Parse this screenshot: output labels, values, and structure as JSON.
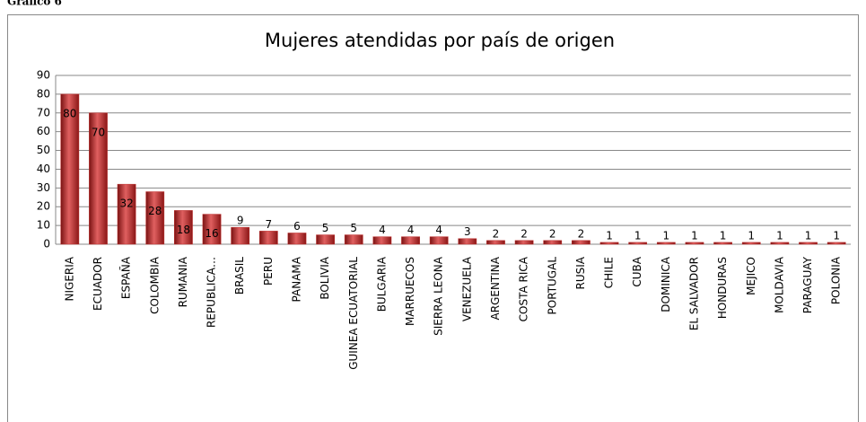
{
  "caption": "Gráfico 6",
  "chart_data": {
    "type": "bar",
    "title": "Mujeres atendidas por país de origen",
    "categories": [
      "NIGERIA",
      "ECUADOR",
      "ESPAÑA",
      "COLOMBIA",
      "RUMANIA",
      "REPUBLICA…",
      "BRASIL",
      "PERU",
      "PANAMA",
      "BOLIVIA",
      "GUINEA ECUATORIAL",
      "BULGARIA",
      "MARRUECOS",
      "SIERRA LEONA",
      "VENEZUELA",
      "ARGENTINA",
      "COSTA RICA",
      "PORTUGAL",
      "RUSIA",
      "CHILE",
      "CUBA",
      "DOMINICA",
      "EL SALVADOR",
      "HONDURAS",
      "MEJICO",
      "MOLDAVIA",
      "PARAGUAY",
      "POLONIA"
    ],
    "values": [
      80,
      70,
      32,
      28,
      18,
      16,
      9,
      7,
      6,
      5,
      5,
      4,
      4,
      4,
      3,
      2,
      2,
      2,
      2,
      1,
      1,
      1,
      1,
      1,
      1,
      1,
      1,
      1
    ],
    "color": "#c0302e",
    "ylim": [
      0,
      90
    ],
    "yticks": [
      0,
      10,
      20,
      30,
      40,
      50,
      60,
      70,
      80,
      90
    ],
    "grid": true
  }
}
